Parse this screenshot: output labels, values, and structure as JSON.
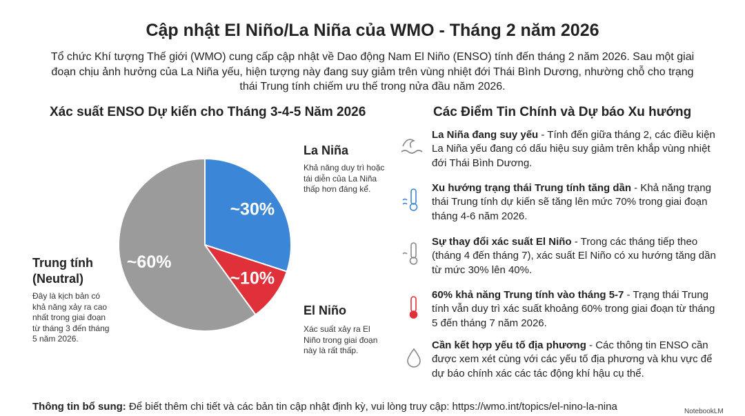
{
  "title": "Cập nhật El Niño/La Niña của WMO - Tháng 2 năm 2026",
  "intro": "Tổ chức Khí tượng Thế giới (WMO) cung cấp cập nhật về Dao động Nam El Niño (ENSO) tính đến tháng 2 năm 2026. Sau một giai đoạn chịu ảnh hưởng của La Niña yếu, hiện tượng này đang suy giảm trên vùng nhiệt đới Thái Bình Dương, nhường chỗ cho trạng thái Trung tính chiếm ưu thế trong nửa đầu năm 2026.",
  "chart_data": {
    "type": "pie",
    "title": "Xác suất ENSO Dự kiến cho Tháng 3-4-5 Năm 2026",
    "categories": [
      "La Niña",
      "El Niño",
      "Trung tính (Neutral)"
    ],
    "values": [
      30,
      10,
      60
    ],
    "value_labels": [
      "~30%",
      "~10%",
      "~60%"
    ],
    "colors": [
      "#3b86d6",
      "#e0303a",
      "#9b9b9b"
    ],
    "annotations": [
      "Khả năng duy trì hoặc tái diễn của La Niña thấp hơn đáng kể.",
      "Xác suất xảy ra El Niño trong giai đoạn này là rất thấp.",
      "Đây là kịch bản có khả năng xảy ra cao nhất trong giai đoạn từ tháng 3 đến tháng 5 năm 2026."
    ]
  },
  "key_points": {
    "title": "Các Điểm Tin Chính và Dự báo Xu hướng",
    "items": [
      {
        "heading": "La Niña đang suy yếu",
        "text": " - Tính đến giữa tháng 2, các điều kiện La Niña yếu đang có dấu hiệu suy giảm trên khắp vùng nhiệt đới Thái Bình Dương."
      },
      {
        "heading": "Xu hướng trạng thái Trung tính tăng dần",
        "text": " - Khả năng trạng thái Trung tính dự kiến sẽ tăng lên mức 70% trong giai đoạn tháng 4-6 năm 2026."
      },
      {
        "heading": "Sự thay đổi xác suất El Niño",
        "text": " - Trong các tháng tiếp theo (tháng 4 đến tháng 7), xác suất El Niño có xu hướng tăng dần từ mức 30% lên 40%."
      },
      {
        "heading": "60% khả năng Trung tính vào tháng 5-7",
        "text": " - Trạng thái Trung tính vẫn duy trì xác suất khoảng 60% trong giai đoạn từ tháng 5 đến tháng 7 năm 2026."
      },
      {
        "heading": "Cần kết hợp yếu tố địa phương",
        "text": " - Các thông tin ENSO cần được xem xét cùng với các yếu tố địa phương và khu vực để dự báo chính xác các tác động khí hậu cụ thể."
      }
    ]
  },
  "footer": {
    "label": "Thông tin bổ sung:",
    "text": " Để biết thêm chi tiết và các bản tin cập nhật định kỳ, vui lòng truy cập: https://wmo.int/topics/el-nino-la-nina"
  },
  "brand": "NotebookLM"
}
